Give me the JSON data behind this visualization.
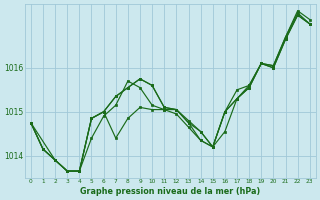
{
  "background_color": "#cce8ee",
  "grid_color": "#a0c8d8",
  "line_color": "#1a6b1a",
  "marker_color": "#1a6b1a",
  "xlabel": "Graphe pression niveau de la mer (hPa)",
  "xlim": [
    -0.5,
    23.5
  ],
  "ylim": [
    1013.5,
    1017.45
  ],
  "yticks": [
    1014,
    1015,
    1016
  ],
  "xticks": [
    0,
    1,
    2,
    3,
    4,
    5,
    6,
    7,
    8,
    9,
    10,
    11,
    12,
    13,
    14,
    15,
    16,
    17,
    18,
    19,
    20,
    21,
    22,
    23
  ],
  "series": [
    {
      "x": [
        0,
        1,
        2,
        3,
        4,
        5,
        6,
        7,
        8,
        9,
        10,
        11,
        12,
        13,
        14,
        15,
        16,
        17,
        18,
        19,
        20,
        21,
        22,
        23
      ],
      "y": [
        1014.75,
        1014.15,
        1013.9,
        1013.65,
        1013.65,
        1014.4,
        1014.9,
        1015.15,
        1015.7,
        1015.55,
        1015.15,
        1015.05,
        1015.05,
        1014.8,
        1014.55,
        1014.2,
        1014.55,
        1015.3,
        1015.6,
        1016.1,
        1016.05,
        1016.7,
        1017.3,
        1017.1
      ]
    },
    {
      "x": [
        0,
        1,
        2,
        3,
        4,
        5,
        6,
        7,
        8,
        9,
        10,
        11,
        12,
        13,
        14,
        15,
        16,
        17,
        18,
        19,
        20,
        21,
        22,
        23
      ],
      "y": [
        1014.75,
        1014.15,
        1013.9,
        1013.65,
        1013.65,
        1014.85,
        1015.0,
        1015.35,
        1015.55,
        1015.75,
        1015.6,
        1015.1,
        1015.05,
        1014.75,
        1014.55,
        1014.2,
        1015.0,
        1015.5,
        1015.6,
        1016.1,
        1016.05,
        1016.7,
        1017.25,
        1017.0
      ]
    },
    {
      "x": [
        0,
        2,
        3,
        4,
        5,
        6,
        7,
        8,
        9,
        10,
        11,
        12,
        13,
        14,
        15,
        16,
        17,
        18,
        19,
        20,
        21,
        22,
        23
      ],
      "y": [
        1014.75,
        1013.9,
        1013.65,
        1013.65,
        1014.85,
        1015.0,
        1014.4,
        1014.85,
        1015.1,
        1015.05,
        1015.05,
        1014.95,
        1014.65,
        1014.35,
        1014.2,
        1015.0,
        1015.3,
        1015.55,
        1016.1,
        1016.0,
        1016.65,
        1017.2,
        1017.0
      ]
    },
    {
      "x": [
        0,
        1,
        2,
        3,
        4,
        5,
        6,
        7,
        8,
        9,
        10,
        11,
        12,
        13,
        14,
        15,
        16,
        17,
        18,
        19,
        20,
        21,
        22,
        23
      ],
      "y": [
        1014.75,
        1014.15,
        1013.9,
        1013.65,
        1013.65,
        1014.85,
        1015.0,
        1015.35,
        1015.55,
        1015.75,
        1015.6,
        1015.1,
        1015.05,
        1014.75,
        1014.35,
        1014.2,
        1015.0,
        1015.3,
        1015.55,
        1016.1,
        1016.0,
        1016.65,
        1017.2,
        1017.0
      ]
    }
  ]
}
